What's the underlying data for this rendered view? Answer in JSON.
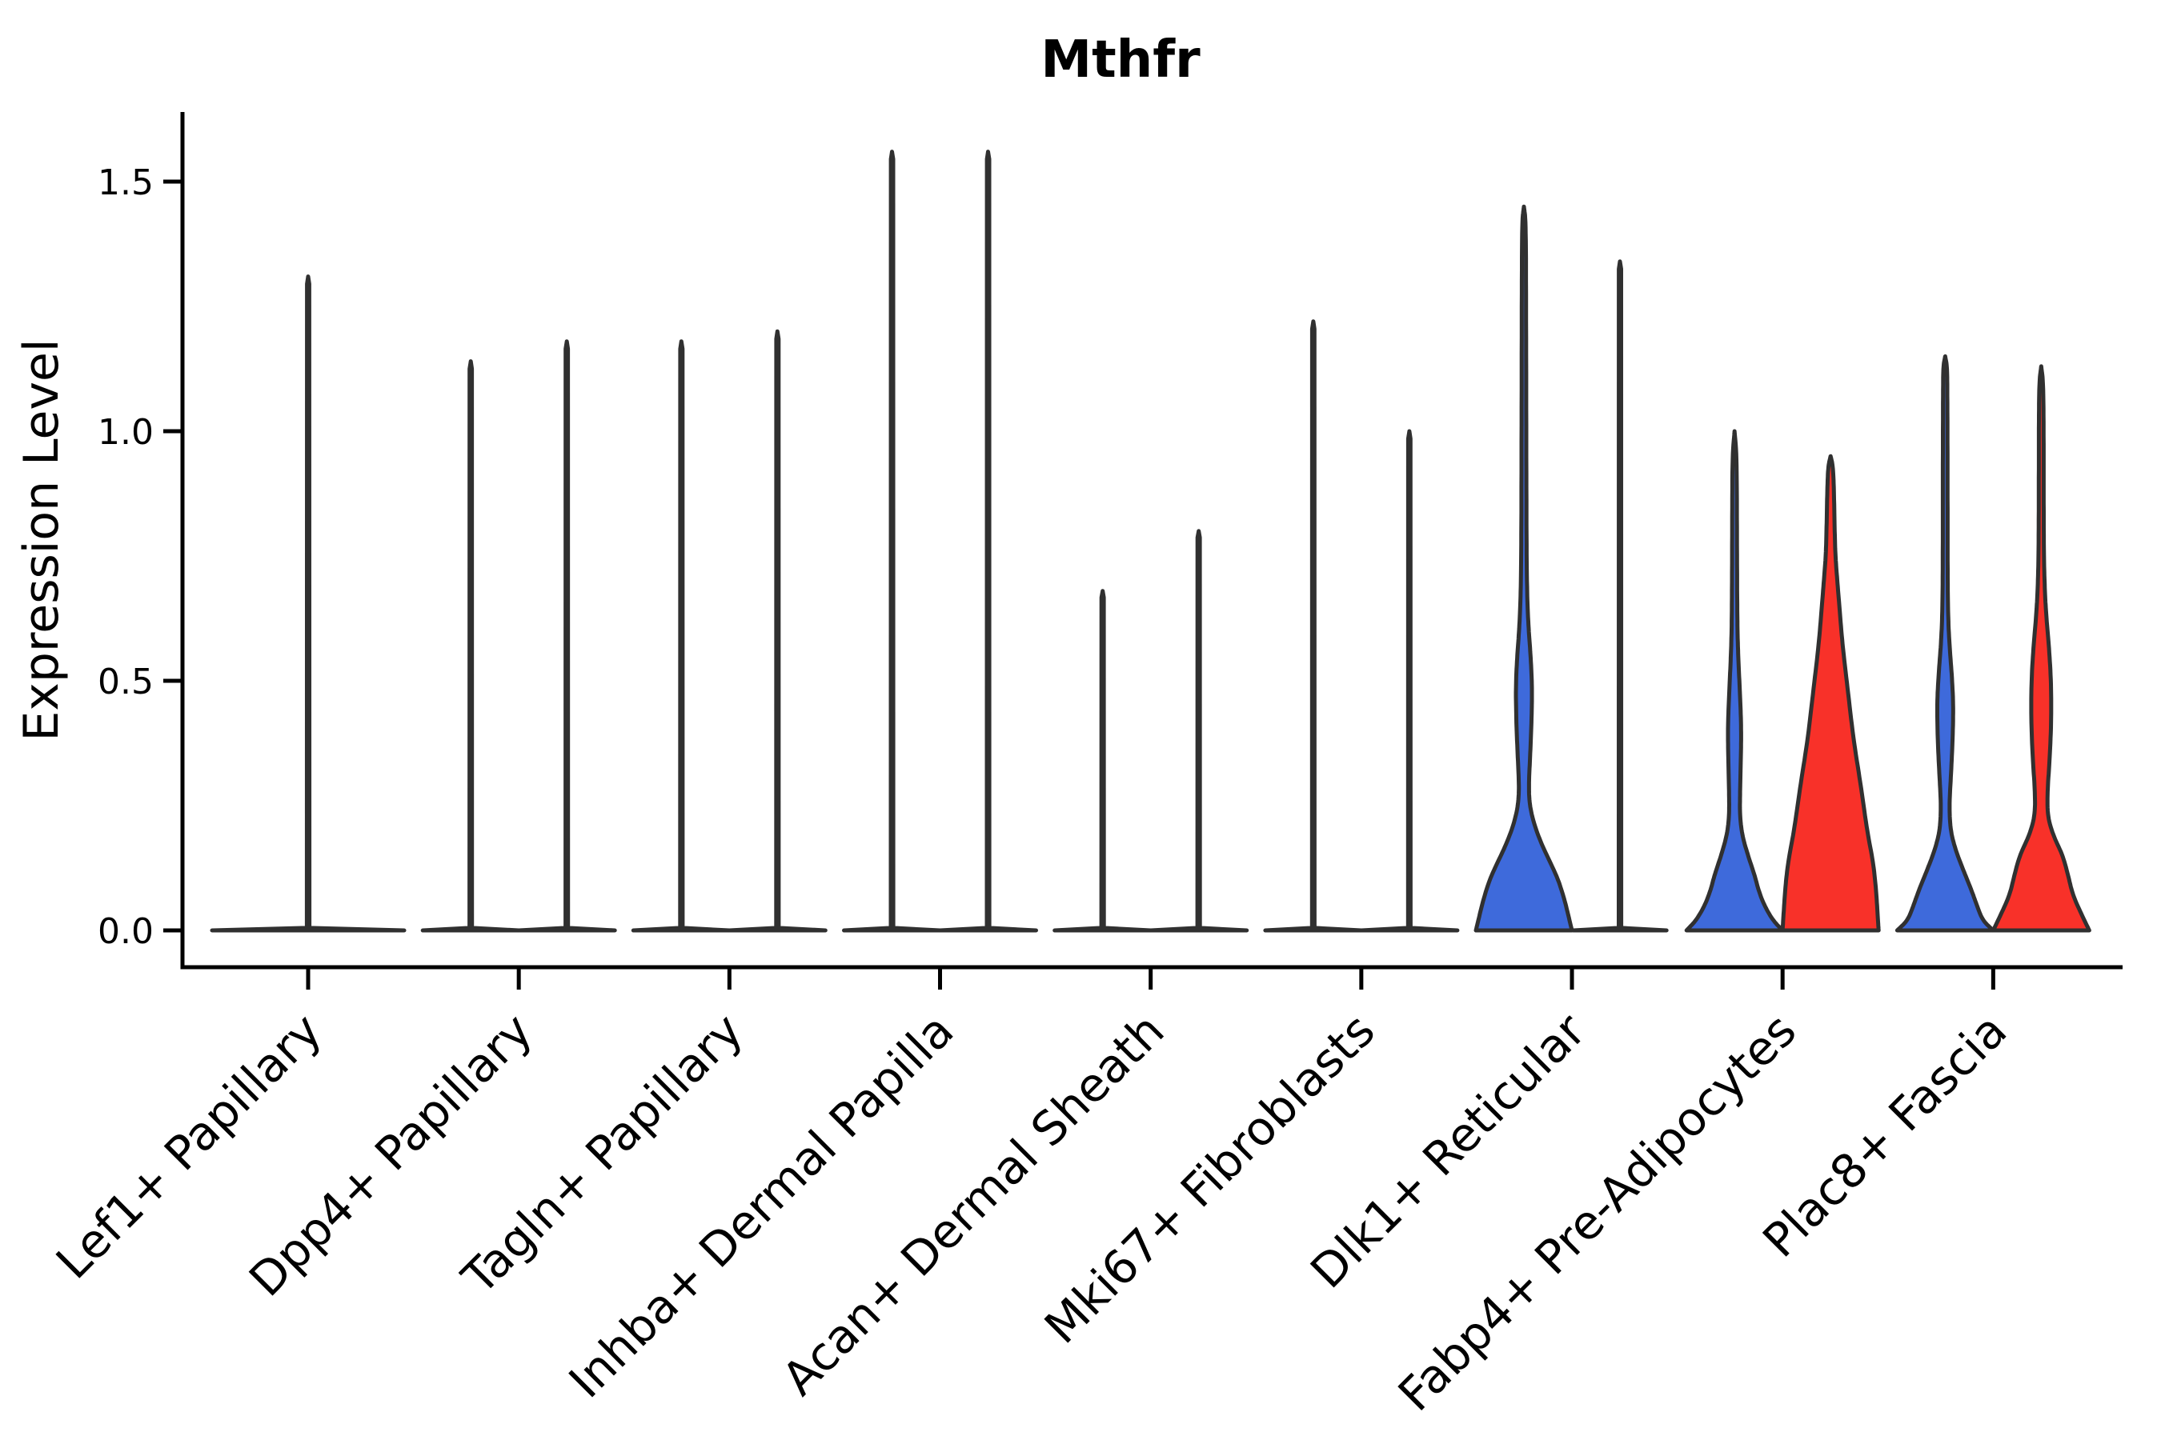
{
  "page": {
    "background": "#ffffff"
  },
  "chart_data": {
    "type": "violin",
    "title": "Mthfr",
    "ylabel": "Expression Level",
    "xlabel": "",
    "legend_position": "none",
    "grid": false,
    "ylim": [
      -0.07,
      1.64
    ],
    "yticks": {
      "values": [
        0.0,
        0.5,
        1.0,
        1.5
      ],
      "labels": [
        "0.0",
        "0.5",
        "1.0",
        "1.5"
      ]
    },
    "categories": [
      "Lef1+ Papillary",
      "Dpp4+ Papillary",
      "Tagln+ Papillary",
      "Inhba+ Dermal Papilla",
      "Acan+ Dermal Sheath",
      "Mki67+ Fibroblasts",
      "Dlk1+ Reticular",
      "Fabp4+ Pre-Adipocytes",
      "Plac8+ Fascia"
    ],
    "colors": {
      "blue_fill": "#3E6ADB",
      "red_fill": "#F83129",
      "white_fill": "#FFFFFF",
      "violin_outline": "#303030",
      "axis": "#000000",
      "text": "#000000"
    },
    "violins": [
      {
        "category": "Lef1+ Papillary",
        "category_index": 0,
        "slot": "center",
        "group": "blue",
        "fill": "#FFFFFF",
        "peak": 1.31,
        "profile": [
          [
            0,
            1.0
          ],
          [
            0.005,
            0.013
          ],
          [
            1.295,
            0.012
          ],
          [
            1.31,
            0
          ]
        ]
      },
      {
        "category": "Dpp4+ Papillary",
        "category_index": 1,
        "slot": "left",
        "group": "blue",
        "fill": "#FFFFFF",
        "peak": 1.14,
        "profile": [
          [
            0,
            1.0
          ],
          [
            0.005,
            0.026
          ],
          [
            1.125,
            0.024
          ],
          [
            1.14,
            0
          ]
        ]
      },
      {
        "category": "Dpp4+ Papillary",
        "category_index": 1,
        "slot": "right",
        "group": "red",
        "fill": "#FFFFFF",
        "peak": 1.18,
        "profile": [
          [
            0,
            1.0
          ],
          [
            0.005,
            0.026
          ],
          [
            1.165,
            0.024
          ],
          [
            1.18,
            0
          ]
        ]
      },
      {
        "category": "Tagln+ Papillary",
        "category_index": 2,
        "slot": "left",
        "group": "blue",
        "fill": "#FFFFFF",
        "peak": 1.18,
        "profile": [
          [
            0,
            1.0
          ],
          [
            0.005,
            0.026
          ],
          [
            1.165,
            0.024
          ],
          [
            1.18,
            0
          ]
        ]
      },
      {
        "category": "Tagln+ Papillary",
        "category_index": 2,
        "slot": "right",
        "group": "red",
        "fill": "#FFFFFF",
        "peak": 1.2,
        "profile": [
          [
            0,
            1.0
          ],
          [
            0.005,
            0.026
          ],
          [
            1.185,
            0.024
          ],
          [
            1.2,
            0
          ]
        ]
      },
      {
        "category": "Inhba+ Dermal Papilla",
        "category_index": 3,
        "slot": "left",
        "group": "blue",
        "fill": "#FFFFFF",
        "peak": 1.56,
        "profile": [
          [
            0,
            1.0
          ],
          [
            0.005,
            0.026
          ],
          [
            1.545,
            0.024
          ],
          [
            1.56,
            0
          ]
        ]
      },
      {
        "category": "Inhba+ Dermal Papilla",
        "category_index": 3,
        "slot": "right",
        "group": "red",
        "fill": "#FFFFFF",
        "peak": 1.56,
        "profile": [
          [
            0,
            1.0
          ],
          [
            0.005,
            0.026
          ],
          [
            1.545,
            0.024
          ],
          [
            1.56,
            0
          ]
        ]
      },
      {
        "category": "Acan+ Dermal Sheath",
        "category_index": 4,
        "slot": "left",
        "group": "blue",
        "fill": "#FFFFFF",
        "peak": 0.68,
        "profile": [
          [
            0,
            1.0
          ],
          [
            0.005,
            0.026
          ],
          [
            0.667,
            0.024
          ],
          [
            0.68,
            0
          ]
        ]
      },
      {
        "category": "Acan+ Dermal Sheath",
        "category_index": 4,
        "slot": "right",
        "group": "red",
        "fill": "#FFFFFF",
        "peak": 0.8,
        "profile": [
          [
            0,
            1.0
          ],
          [
            0.005,
            0.026
          ],
          [
            0.787,
            0.024
          ],
          [
            0.8,
            0
          ]
        ]
      },
      {
        "category": "Mki67+ Fibroblasts",
        "category_index": 5,
        "slot": "left",
        "group": "blue",
        "fill": "#FFFFFF",
        "peak": 1.22,
        "profile": [
          [
            0,
            1.0
          ],
          [
            0.005,
            0.026
          ],
          [
            1.205,
            0.024
          ],
          [
            1.22,
            0
          ]
        ]
      },
      {
        "category": "Mki67+ Fibroblasts",
        "category_index": 5,
        "slot": "right",
        "group": "red",
        "fill": "#FFFFFF",
        "peak": 1.0,
        "profile": [
          [
            0,
            1.0
          ],
          [
            0.005,
            0.026
          ],
          [
            0.985,
            0.024
          ],
          [
            1.0,
            0
          ]
        ]
      },
      {
        "category": "Dlk1+ Reticular",
        "category_index": 6,
        "slot": "left",
        "group": "blue",
        "fill": "#3E6ADB",
        "peak": 1.45,
        "profile": [
          [
            0,
            1.0
          ],
          [
            0.02,
            0.95
          ],
          [
            0.06,
            0.85
          ],
          [
            0.1,
            0.72
          ],
          [
            0.13,
            0.58
          ],
          [
            0.17,
            0.38
          ],
          [
            0.21,
            0.22
          ],
          [
            0.25,
            0.12
          ],
          [
            0.29,
            0.1
          ],
          [
            0.35,
            0.13
          ],
          [
            0.42,
            0.16
          ],
          [
            0.49,
            0.17
          ],
          [
            0.55,
            0.14
          ],
          [
            0.6,
            0.1
          ],
          [
            0.66,
            0.07
          ],
          [
            0.75,
            0.055
          ],
          [
            0.95,
            0.05
          ],
          [
            1.25,
            0.045
          ],
          [
            1.42,
            0.04
          ],
          [
            1.45,
            0
          ]
        ]
      },
      {
        "category": "Dlk1+ Reticular",
        "category_index": 6,
        "slot": "right",
        "group": "red",
        "fill": "#FFFFFF",
        "peak": 1.34,
        "profile": [
          [
            0,
            0.97
          ],
          [
            0.005,
            0.026
          ],
          [
            1.325,
            0.024
          ],
          [
            1.34,
            0
          ]
        ]
      },
      {
        "category": "Fabp4+ Pre-Adipocytes",
        "category_index": 7,
        "slot": "left",
        "group": "blue",
        "fill": "#3E6ADB",
        "peak": 1.0,
        "profile": [
          [
            0,
            1.0
          ],
          [
            0.02,
            0.8
          ],
          [
            0.05,
            0.62
          ],
          [
            0.08,
            0.5
          ],
          [
            0.11,
            0.42
          ],
          [
            0.15,
            0.28
          ],
          [
            0.19,
            0.16
          ],
          [
            0.23,
            0.11
          ],
          [
            0.28,
            0.115
          ],
          [
            0.34,
            0.13
          ],
          [
            0.4,
            0.14
          ],
          [
            0.46,
            0.12
          ],
          [
            0.52,
            0.09
          ],
          [
            0.58,
            0.065
          ],
          [
            0.65,
            0.055
          ],
          [
            0.8,
            0.05
          ],
          [
            0.95,
            0.045
          ],
          [
            1.0,
            0
          ]
        ]
      },
      {
        "category": "Fabp4+ Pre-Adipocytes",
        "category_index": 7,
        "slot": "right",
        "group": "red",
        "fill": "#F83129",
        "peak": 0.95,
        "profile": [
          [
            0,
            1.0
          ],
          [
            0.04,
            0.975
          ],
          [
            0.09,
            0.94
          ],
          [
            0.14,
            0.88
          ],
          [
            0.2,
            0.76
          ],
          [
            0.29,
            0.63
          ],
          [
            0.38,
            0.48
          ],
          [
            0.48,
            0.36
          ],
          [
            0.57,
            0.25
          ],
          [
            0.64,
            0.19
          ],
          [
            0.7,
            0.14
          ],
          [
            0.75,
            0.1
          ],
          [
            0.8,
            0.085
          ],
          [
            0.88,
            0.07
          ],
          [
            0.93,
            0.05
          ],
          [
            0.95,
            0
          ]
        ]
      },
      {
        "category": "Plac8+ Fascia",
        "category_index": 8,
        "slot": "left",
        "group": "blue",
        "fill": "#3E6ADB",
        "peak": 1.15,
        "profile": [
          [
            0,
            1.0
          ],
          [
            0.02,
            0.78
          ],
          [
            0.05,
            0.66
          ],
          [
            0.08,
            0.55
          ],
          [
            0.12,
            0.38
          ],
          [
            0.16,
            0.22
          ],
          [
            0.2,
            0.11
          ],
          [
            0.25,
            0.085
          ],
          [
            0.31,
            0.12
          ],
          [
            0.38,
            0.155
          ],
          [
            0.45,
            0.17
          ],
          [
            0.51,
            0.14
          ],
          [
            0.57,
            0.09
          ],
          [
            0.63,
            0.06
          ],
          [
            0.72,
            0.05
          ],
          [
            0.9,
            0.05
          ],
          [
            1.08,
            0.045
          ],
          [
            1.13,
            0.04
          ],
          [
            1.15,
            0
          ]
        ]
      },
      {
        "category": "Plac8+ Fascia",
        "category_index": 8,
        "slot": "right",
        "group": "red",
        "fill": "#F83129",
        "peak": 1.13,
        "profile": [
          [
            0,
            1.0
          ],
          [
            0.03,
            0.85
          ],
          [
            0.07,
            0.66
          ],
          [
            0.11,
            0.56
          ],
          [
            0.15,
            0.45
          ],
          [
            0.19,
            0.25
          ],
          [
            0.23,
            0.13
          ],
          [
            0.28,
            0.13
          ],
          [
            0.34,
            0.175
          ],
          [
            0.42,
            0.21
          ],
          [
            0.5,
            0.205
          ],
          [
            0.57,
            0.16
          ],
          [
            0.63,
            0.105
          ],
          [
            0.68,
            0.075
          ],
          [
            0.75,
            0.055
          ],
          [
            0.88,
            0.05
          ],
          [
            1.02,
            0.05
          ],
          [
            1.1,
            0.04
          ],
          [
            1.13,
            0
          ]
        ]
      }
    ]
  }
}
